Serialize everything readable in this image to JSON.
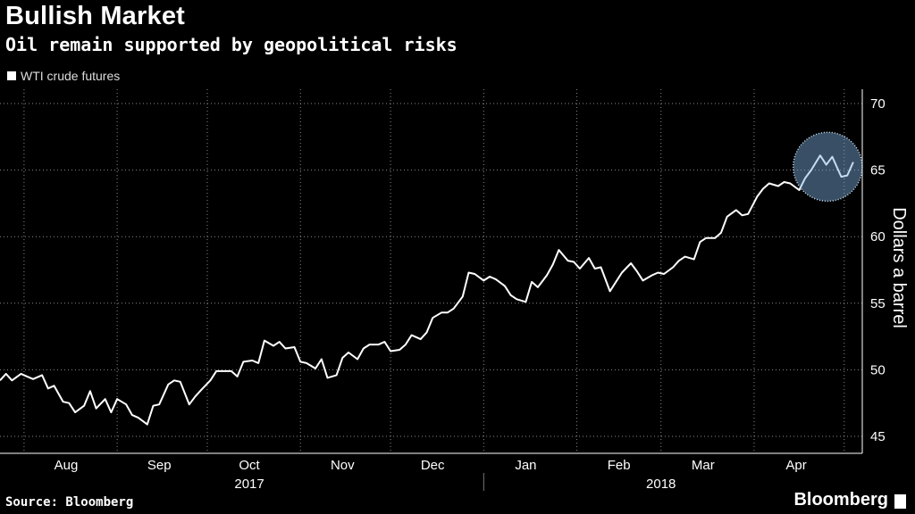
{
  "chart_data": {
    "type": "line",
    "title": "Bullish Market",
    "subtitle": "Oil remain supported by geopolitical risks",
    "ylabel": "Dollars a barrel",
    "ylim": [
      44,
      72
    ],
    "yticks": [
      45,
      50,
      55,
      60,
      65,
      70
    ],
    "xlim": [
      "2017-07-24",
      "2018-05-07"
    ],
    "x_month_labels": [
      {
        "label": "Aug",
        "date": "2017-08-15"
      },
      {
        "label": "Sep",
        "date": "2017-09-15"
      },
      {
        "label": "Oct",
        "date": "2017-10-15"
      },
      {
        "label": "Nov",
        "date": "2017-11-15"
      },
      {
        "label": "Dec",
        "date": "2017-12-15"
      },
      {
        "label": "Jan",
        "date": "2018-01-15"
      },
      {
        "label": "Feb",
        "date": "2018-02-15"
      },
      {
        "label": "Mar",
        "date": "2018-03-15"
      },
      {
        "label": "Apr",
        "date": "2018-04-15"
      }
    ],
    "x_year_labels": [
      {
        "label": "2017",
        "date": "2017-10-15"
      },
      {
        "label": "2018",
        "date": "2018-03-01"
      }
    ],
    "year_divider": "2018-01-01",
    "grid": true,
    "legend": {
      "position": "top-left",
      "entries": [
        "WTI crude futures"
      ]
    },
    "highlight": {
      "from": "2018-04-17",
      "to": "2018-05-04",
      "color": "#7fb0e0"
    },
    "series": [
      {
        "name": "WTI crude futures",
        "color": "#ffffff",
        "points": [
          [
            "2017-07-24",
            49.2
          ],
          [
            "2017-07-26",
            49.7
          ],
          [
            "2017-07-28",
            49.2
          ],
          [
            "2017-07-31",
            49.7
          ],
          [
            "2017-08-02",
            49.5
          ],
          [
            "2017-08-04",
            49.3
          ],
          [
            "2017-08-07",
            49.6
          ],
          [
            "2017-08-09",
            48.6
          ],
          [
            "2017-08-11",
            48.8
          ],
          [
            "2017-08-14",
            47.6
          ],
          [
            "2017-08-16",
            47.5
          ],
          [
            "2017-08-18",
            46.8
          ],
          [
            "2017-08-21",
            47.3
          ],
          [
            "2017-08-23",
            48.4
          ],
          [
            "2017-08-25",
            47.1
          ],
          [
            "2017-08-28",
            47.8
          ],
          [
            "2017-08-30",
            46.8
          ],
          [
            "2017-09-01",
            47.8
          ],
          [
            "2017-09-04",
            47.4
          ],
          [
            "2017-09-06",
            46.6
          ],
          [
            "2017-09-08",
            46.4
          ],
          [
            "2017-09-11",
            45.9
          ],
          [
            "2017-09-13",
            47.3
          ],
          [
            "2017-09-15",
            47.4
          ],
          [
            "2017-09-18",
            48.9
          ],
          [
            "2017-09-20",
            49.2
          ],
          [
            "2017-09-22",
            49.1
          ],
          [
            "2017-09-25",
            47.4
          ],
          [
            "2017-09-27",
            48.0
          ],
          [
            "2017-09-29",
            48.5
          ],
          [
            "2017-10-02",
            49.2
          ],
          [
            "2017-10-04",
            49.9
          ],
          [
            "2017-10-06",
            49.9
          ],
          [
            "2017-10-09",
            49.9
          ],
          [
            "2017-10-11",
            49.5
          ],
          [
            "2017-10-13",
            50.6
          ],
          [
            "2017-10-16",
            50.7
          ],
          [
            "2017-10-18",
            50.5
          ],
          [
            "2017-10-20",
            52.2
          ],
          [
            "2017-10-23",
            51.8
          ],
          [
            "2017-10-25",
            52.1
          ],
          [
            "2017-10-27",
            51.6
          ],
          [
            "2017-10-30",
            51.7
          ],
          [
            "2017-11-01",
            50.6
          ],
          [
            "2017-11-03",
            50.5
          ],
          [
            "2017-11-06",
            50.1
          ],
          [
            "2017-11-08",
            50.8
          ],
          [
            "2017-11-10",
            49.4
          ],
          [
            "2017-11-13",
            49.6
          ],
          [
            "2017-11-15",
            50.9
          ],
          [
            "2017-11-17",
            51.3
          ],
          [
            "2017-11-20",
            50.8
          ],
          [
            "2017-11-22",
            51.6
          ],
          [
            "2017-11-24",
            51.9
          ],
          [
            "2017-11-27",
            51.9
          ],
          [
            "2017-11-29",
            52.1
          ],
          [
            "2017-12-01",
            51.4
          ],
          [
            "2017-12-04",
            51.5
          ],
          [
            "2017-12-06",
            51.9
          ],
          [
            "2017-12-08",
            52.6
          ],
          [
            "2017-12-11",
            52.3
          ],
          [
            "2017-12-13",
            52.8
          ],
          [
            "2017-12-15",
            53.9
          ],
          [
            "2017-12-18",
            54.3
          ],
          [
            "2017-12-20",
            54.3
          ],
          [
            "2017-12-22",
            54.6
          ],
          [
            "2017-12-25",
            55.5
          ],
          [
            "2017-12-27",
            57.3
          ],
          [
            "2017-12-29",
            57.2
          ],
          [
            "2018-01-01",
            56.7
          ],
          [
            "2018-01-03",
            57.0
          ],
          [
            "2018-01-05",
            56.8
          ],
          [
            "2018-01-08",
            56.3
          ],
          [
            "2018-01-10",
            55.6
          ],
          [
            "2018-01-12",
            55.3
          ],
          [
            "2018-01-15",
            55.1
          ],
          [
            "2018-01-17",
            56.6
          ],
          [
            "2018-01-19",
            56.2
          ],
          [
            "2018-01-22",
            57.1
          ],
          [
            "2018-01-24",
            57.9
          ],
          [
            "2018-01-26",
            59.0
          ],
          [
            "2018-01-29",
            58.2
          ],
          [
            "2018-01-31",
            58.1
          ],
          [
            "2018-02-02",
            57.6
          ],
          [
            "2018-02-05",
            58.4
          ],
          [
            "2018-02-07",
            57.6
          ],
          [
            "2018-02-09",
            57.7
          ],
          [
            "2018-02-12",
            55.9
          ],
          [
            "2018-02-14",
            56.6
          ],
          [
            "2018-02-16",
            57.3
          ],
          [
            "2018-02-19",
            58.0
          ],
          [
            "2018-02-21",
            57.4
          ],
          [
            "2018-02-23",
            56.7
          ],
          [
            "2018-02-26",
            57.1
          ],
          [
            "2018-02-28",
            57.3
          ],
          [
            "2018-03-02",
            57.2
          ],
          [
            "2018-03-05",
            57.7
          ],
          [
            "2018-03-07",
            58.2
          ],
          [
            "2018-03-09",
            58.5
          ],
          [
            "2018-03-12",
            58.3
          ],
          [
            "2018-03-14",
            59.6
          ],
          [
            "2018-03-16",
            59.9
          ],
          [
            "2018-03-19",
            59.9
          ],
          [
            "2018-03-21",
            60.3
          ],
          [
            "2018-03-23",
            61.5
          ],
          [
            "2018-03-26",
            62.0
          ],
          [
            "2018-03-28",
            61.6
          ],
          [
            "2018-03-30",
            61.7
          ],
          [
            "2018-04-02",
            63.0
          ],
          [
            "2018-04-04",
            63.6
          ],
          [
            "2018-04-06",
            64.0
          ],
          [
            "2018-04-09",
            63.8
          ],
          [
            "2018-04-11",
            64.1
          ],
          [
            "2018-04-13",
            64.0
          ],
          [
            "2018-04-16",
            63.5
          ],
          [
            "2018-04-18",
            64.4
          ],
          [
            "2018-04-20",
            65.0
          ],
          [
            "2018-04-23",
            66.1
          ],
          [
            "2018-04-25",
            65.4
          ],
          [
            "2018-04-27",
            66.0
          ],
          [
            "2018-04-30",
            64.5
          ],
          [
            "2018-05-02",
            64.6
          ],
          [
            "2018-05-04",
            65.6
          ]
        ]
      }
    ]
  },
  "source": "Source: Bloomberg",
  "brand": "Bloomberg"
}
